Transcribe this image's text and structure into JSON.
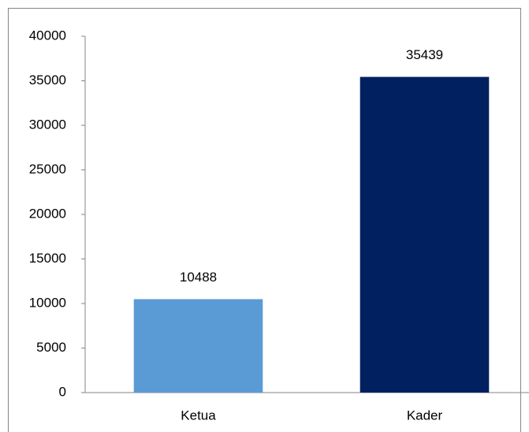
{
  "chart_data": {
    "type": "bar",
    "categories": [
      "Ketua",
      "Kader"
    ],
    "values": [
      10488,
      35439
    ],
    "colors": [
      "#5b9bd5",
      "#002060"
    ],
    "ylim": [
      0,
      40000
    ],
    "yticks": [
      0,
      5000,
      10000,
      15000,
      20000,
      25000,
      30000,
      35000,
      40000
    ],
    "grid": false,
    "data_labels": true
  }
}
